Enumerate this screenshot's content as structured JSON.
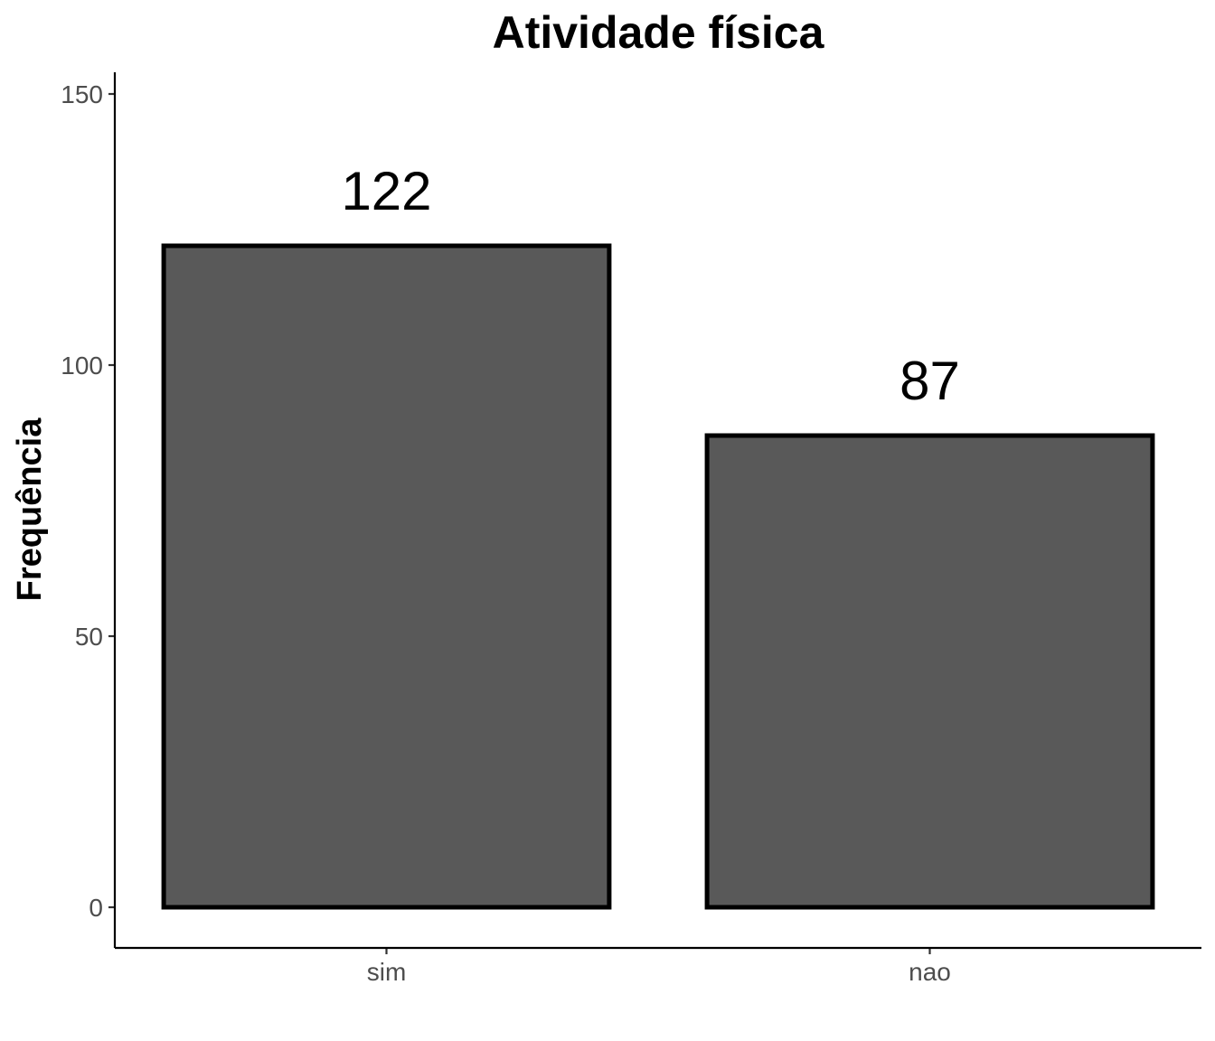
{
  "chart_data": {
    "type": "bar",
    "title": "Atividade física",
    "xlabel": "",
    "ylabel": "Frequência",
    "categories": [
      "sim",
      "nao"
    ],
    "values": [
      122,
      87
    ],
    "data_labels": [
      "122",
      "87"
    ],
    "y_ticks": [
      0,
      50,
      100,
      150
    ],
    "y_tick_labels": [
      "0",
      "50",
      "100",
      "150"
    ],
    "ylim": [
      -7.5,
      153.5
    ],
    "grid": false,
    "bar_fill": "#595959",
    "bar_outline": "#000000"
  }
}
